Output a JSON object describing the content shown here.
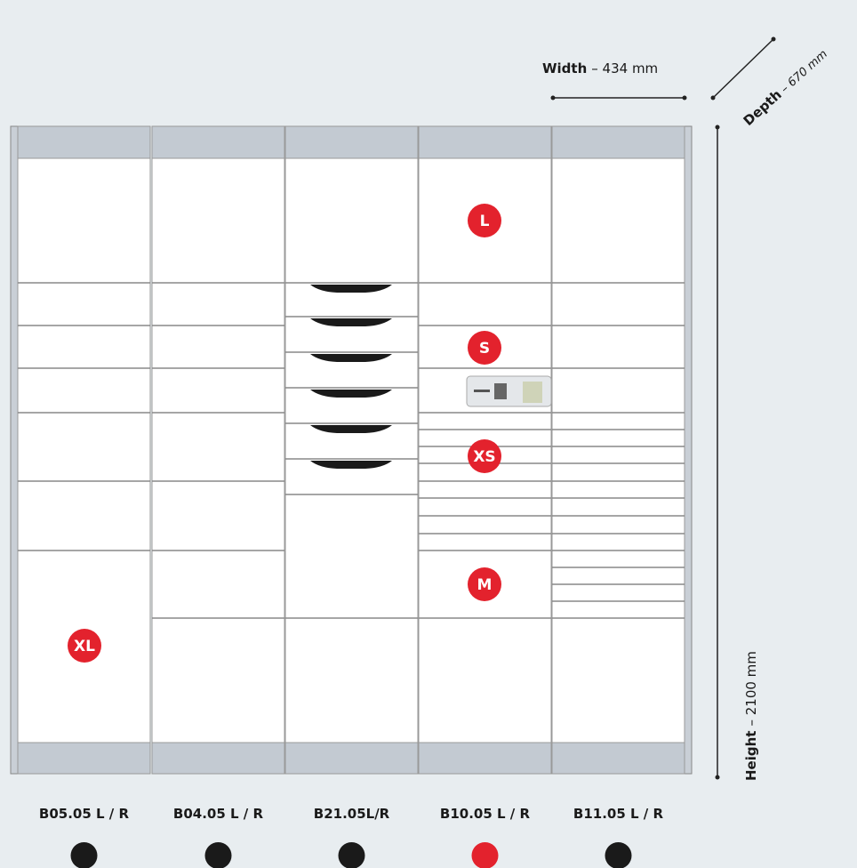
{
  "dimensions": {
    "width": {
      "name": "Width",
      "value": "– 434 mm"
    },
    "depth": {
      "name": "Depth",
      "value": "– 670 mm"
    },
    "height": {
      "name": "Height",
      "value": "– 2100 mm"
    }
  },
  "badges": [
    "L",
    "S",
    "XS",
    "M",
    "XL"
  ],
  "columns": [
    "B05.05 L / R",
    "B04.05 L / R",
    "B21.05L/R",
    "B10.05 L / R",
    "B11.05 L / R"
  ],
  "selected": 3
}
